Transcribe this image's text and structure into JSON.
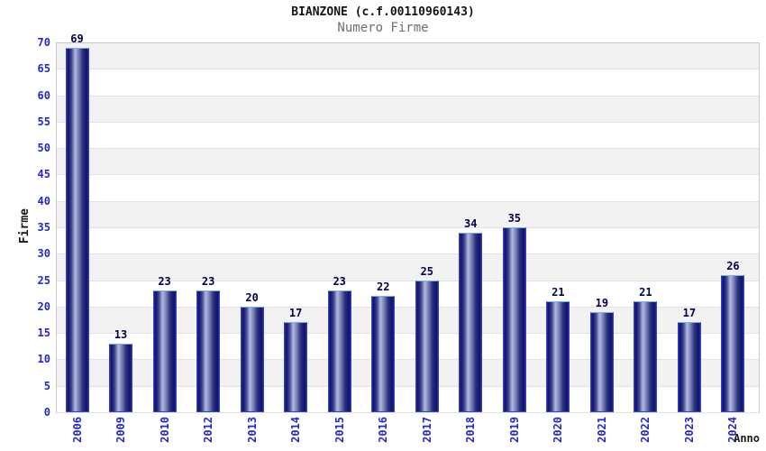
{
  "chart_data": {
    "type": "bar",
    "title": "BIANZONE (c.f.00110960143)",
    "subtitle": "Numero Firme",
    "xlabel": "Anno",
    "ylabel": "Firme",
    "categories": [
      "2006",
      "2009",
      "2010",
      "2012",
      "2013",
      "2014",
      "2015",
      "2016",
      "2017",
      "2018",
      "2019",
      "2020",
      "2021",
      "2022",
      "2023",
      "2024"
    ],
    "values": [
      69,
      13,
      23,
      23,
      20,
      17,
      23,
      22,
      25,
      34,
      35,
      21,
      19,
      21,
      17,
      26
    ],
    "ylim": [
      0,
      70
    ],
    "ytick_step": 5,
    "grid": "horizontal-bands-alternating",
    "legend": "none",
    "colors": {
      "bar_dark": "#121266",
      "bar_highlight": "#b4b9de",
      "bar_border": "#2e45cc",
      "bar_top_edge": "#79b1f0",
      "tick_label": "#2626cf",
      "value_label": "#00004d",
      "band_gray": "#f2f2f2",
      "band_white": "#ffffff",
      "band_line": "#e2e2e2",
      "plot_border": "#c9c9c9",
      "title": "#141414",
      "subtitle": "#6f6f6f",
      "axis_title": "#1a1a1a"
    }
  }
}
